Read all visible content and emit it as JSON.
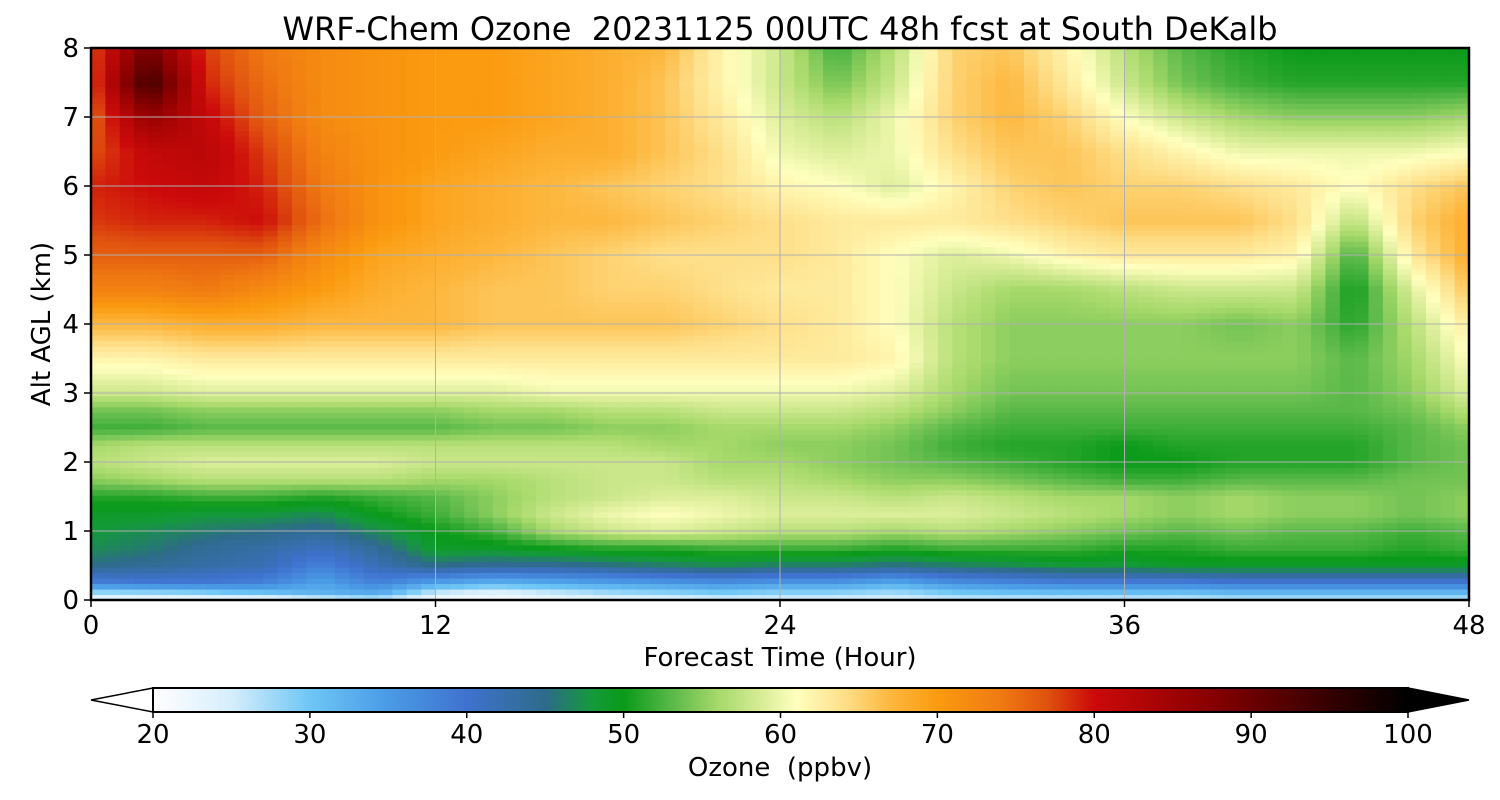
{
  "chart_data": {
    "type": "heatmap",
    "title": "WRF-Chem Ozone  20231125 00UTC 48h fcst at South DeKalb",
    "xlabel": "Forecast Time (Hour)",
    "ylabel": "Alt AGL (km)",
    "xlim": [
      0,
      48
    ],
    "ylim": [
      0,
      8
    ],
    "x_ticks": [
      0,
      12,
      24,
      36,
      48
    ],
    "y_ticks": [
      0,
      1,
      2,
      3,
      4,
      5,
      6,
      7,
      8
    ],
    "grid": true,
    "x": [
      0,
      2,
      4,
      6,
      8,
      10,
      12,
      14,
      16,
      18,
      20,
      22,
      24,
      26,
      28,
      30,
      32,
      34,
      36,
      38,
      40,
      42,
      44,
      46,
      48
    ],
    "y": [
      0,
      0.1,
      0.25,
      0.5,
      0.75,
      1,
      1.25,
      1.5,
      1.75,
      2,
      2.25,
      2.5,
      2.75,
      3,
      3.5,
      4,
      4.5,
      5,
      5.5,
      6,
      6.5,
      7,
      7.5,
      8
    ],
    "z": [
      [
        21,
        21,
        21,
        21,
        23,
        25,
        21,
        21,
        22,
        23,
        23,
        24,
        24,
        24,
        24,
        25,
        25,
        25,
        25,
        25,
        26,
        26,
        26,
        26,
        26
      ],
      [
        27,
        27,
        28,
        30,
        32,
        33,
        25,
        23,
        25,
        27,
        28,
        29,
        28,
        28,
        27,
        29,
        30,
        30,
        30,
        30,
        31,
        31,
        31,
        31,
        31
      ],
      [
        38,
        39,
        39,
        38,
        34,
        38,
        34,
        32,
        33,
        34,
        35,
        36,
        35,
        35,
        33,
        36,
        37,
        38,
        38,
        38,
        39,
        39,
        39,
        39,
        39
      ],
      [
        45,
        44,
        43,
        42,
        38,
        42,
        45,
        44,
        44,
        45,
        46,
        47,
        46,
        46,
        45,
        46,
        47,
        48,
        48,
        49,
        49,
        49,
        49,
        49,
        49
      ],
      [
        47,
        46,
        44,
        43,
        41,
        44,
        49,
        49,
        50,
        51,
        51,
        52,
        52,
        52,
        51,
        52,
        52,
        52,
        51,
        51,
        52,
        52,
        52,
        51,
        52
      ],
      [
        48,
        47,
        46,
        45,
        44,
        47,
        50,
        52,
        56,
        58,
        59,
        58,
        57,
        57,
        56,
        57,
        56,
        55,
        54,
        53,
        54,
        53,
        53,
        52,
        53
      ],
      [
        49,
        49,
        48,
        48,
        47,
        50,
        52,
        55,
        58,
        60,
        61,
        60,
        59,
        59,
        59,
        59,
        58,
        57,
        56,
        55,
        56,
        55,
        55,
        54,
        55
      ],
      [
        51,
        51,
        52,
        52,
        51,
        52,
        53,
        55,
        57,
        58,
        59,
        59,
        58,
        58,
        57,
        58,
        57,
        56,
        56,
        55,
        56,
        55,
        55,
        54,
        55
      ],
      [
        55,
        56,
        57,
        57,
        57,
        57,
        56,
        56,
        57,
        58,
        58,
        57,
        57,
        56,
        55,
        55,
        54,
        53,
        52,
        52,
        53,
        53,
        53,
        54,
        54
      ],
      [
        57,
        58,
        59,
        59,
        59,
        59,
        58,
        58,
        58,
        58,
        58,
        56,
        56,
        55,
        54,
        53,
        52,
        51,
        50,
        50,
        51,
        51,
        51,
        53,
        54
      ],
      [
        56,
        57,
        57,
        57,
        57,
        57,
        57,
        57,
        57,
        57,
        56,
        56,
        55,
        55,
        54,
        52,
        51,
        51,
        50,
        51,
        51,
        51,
        51,
        53,
        54
      ],
      [
        52,
        52,
        53,
        53,
        53,
        53,
        53,
        54,
        54,
        55,
        55,
        56,
        56,
        56,
        55,
        53,
        52,
        52,
        52,
        52,
        52,
        52,
        52,
        53,
        55
      ],
      [
        54,
        54,
        55,
        55,
        55,
        55,
        55,
        56,
        56,
        57,
        57,
        58,
        58,
        58,
        57,
        55,
        53,
        53,
        53,
        53,
        53,
        53,
        53,
        54,
        57
      ],
      [
        58,
        58,
        59,
        59,
        59,
        59,
        59,
        59,
        60,
        60,
        60,
        60,
        60,
        60,
        59,
        56,
        54,
        54,
        54,
        54,
        54,
        54,
        53,
        55,
        59
      ],
      [
        62,
        62,
        63,
        63,
        63,
        63,
        63,
        63,
        63,
        63,
        63,
        63,
        63,
        63,
        62,
        57,
        55,
        55,
        55,
        55,
        55,
        55,
        53,
        56,
        61
      ],
      [
        67,
        67,
        68,
        68,
        67,
        67,
        67,
        66,
        66,
        66,
        66,
        65,
        64,
        63,
        61,
        57,
        55,
        55,
        55,
        55,
        54,
        55,
        51,
        57,
        63
      ],
      [
        73,
        73,
        74,
        72,
        70,
        68,
        67,
        66,
        66,
        65,
        65,
        64,
        63,
        63,
        61,
        58,
        56,
        56,
        57,
        58,
        58,
        58,
        50,
        59,
        66
      ],
      [
        76,
        76,
        76,
        76,
        72,
        69,
        68,
        67,
        66,
        65,
        64,
        64,
        64,
        63,
        61,
        59,
        60,
        62,
        63,
        63,
        63,
        62,
        52,
        63,
        68
      ],
      [
        78,
        79,
        79,
        80,
        75,
        71,
        69,
        68,
        67,
        67,
        66,
        65,
        64,
        63,
        63,
        63,
        64,
        65,
        66,
        66,
        66,
        64,
        57,
        65,
        68
      ],
      [
        79,
        80,
        81,
        79,
        74,
        71,
        69,
        68,
        67,
        66,
        65,
        64,
        62,
        61,
        59,
        62,
        65,
        66,
        65,
        65,
        64,
        63,
        61,
        64,
        66
      ],
      [
        77,
        81,
        82,
        78,
        73,
        71,
        70,
        69,
        68,
        68,
        66,
        64,
        60,
        59,
        60,
        64,
        66,
        66,
        64,
        62,
        60,
        60,
        60,
        60,
        61
      ],
      [
        76,
        86,
        81,
        76,
        72,
        71,
        70,
        70,
        69,
        68,
        66,
        63,
        59,
        57,
        60,
        65,
        67,
        65,
        61,
        58,
        56,
        55,
        55,
        55,
        56
      ],
      [
        77,
        94,
        79,
        75,
        72,
        71,
        70,
        70,
        69,
        68,
        66,
        62,
        58,
        54,
        58,
        65,
        67,
        63,
        58,
        54,
        52,
        51,
        51,
        51,
        51
      ],
      [
        77,
        89,
        78,
        74,
        72,
        71,
        70,
        70,
        69,
        68,
        67,
        62,
        58,
        52,
        57,
        65,
        66,
        62,
        57,
        53,
        51,
        50,
        50,
        50,
        50
      ]
    ],
    "colorbar": {
      "label": "Ozone  (ppbv)",
      "vmin": 20,
      "vmax": 100,
      "ticks": [
        20,
        30,
        40,
        50,
        60,
        70,
        80,
        90,
        100
      ],
      "extend": "both",
      "stops": [
        [
          20,
          "#ffffff"
        ],
        [
          25,
          "#d6eefc"
        ],
        [
          30,
          "#6ec6f5"
        ],
        [
          35,
          "#4a9be6"
        ],
        [
          40,
          "#3f72cf"
        ],
        [
          45,
          "#2e6b8a"
        ],
        [
          48,
          "#149a3a"
        ],
        [
          50,
          "#0a9a1a"
        ],
        [
          53,
          "#58b848"
        ],
        [
          56,
          "#a6d96a"
        ],
        [
          59,
          "#dcee9a"
        ],
        [
          61,
          "#ffffbe"
        ],
        [
          64,
          "#fee08b"
        ],
        [
          67,
          "#fdb73e"
        ],
        [
          70,
          "#fb9b10"
        ],
        [
          74,
          "#f07a12"
        ],
        [
          77,
          "#e0520f"
        ],
        [
          80,
          "#cc0a0a"
        ],
        [
          87,
          "#8c0000"
        ],
        [
          93,
          "#4a0000"
        ],
        [
          100,
          "#000000"
        ]
      ]
    }
  }
}
